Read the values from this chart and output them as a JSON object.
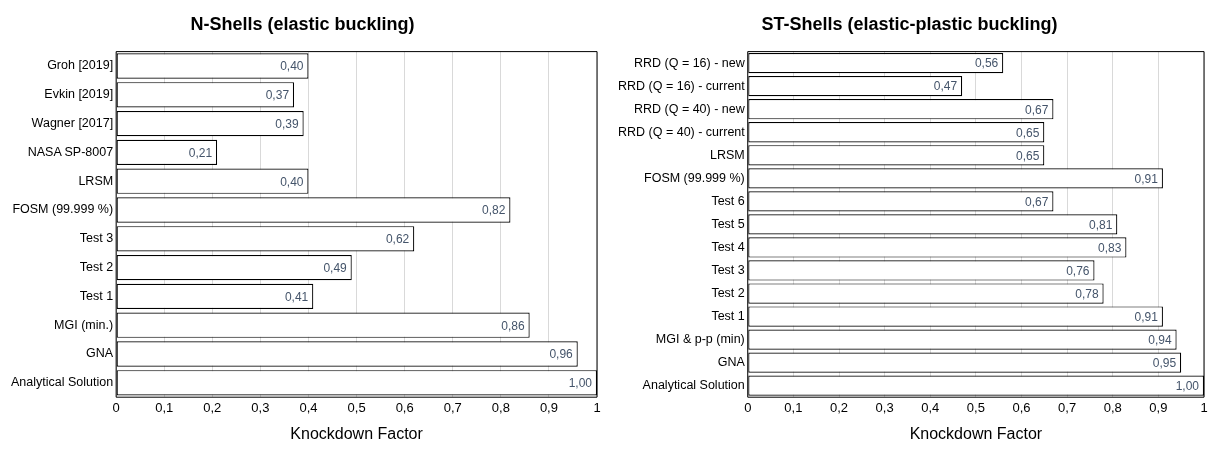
{
  "chart_data": [
    {
      "type": "bar",
      "orientation": "horizontal",
      "title": "N-Shells (elastic buckling)",
      "xlabel": "Knockdown Factor",
      "categories": [
        "Groh [2019]",
        "Evkin [2019]",
        "Wagner [2017]",
        "NASA SP-8007",
        "LRSM",
        "FOSM (99.999 %)",
        "Test 3",
        "Test 2",
        "Test 1",
        "MGI (min.)",
        "GNA",
        "Analytical Solution"
      ],
      "values": [
        0.4,
        0.37,
        0.39,
        0.21,
        0.4,
        0.82,
        0.62,
        0.49,
        0.41,
        0.86,
        0.96,
        1.0
      ],
      "value_labels": [
        "0,40",
        "0,37",
        "0,39",
        "0,21",
        "0,40",
        "0,82",
        "0,62",
        "0,49",
        "0,41",
        "0,86",
        "0,96",
        "1,00"
      ],
      "color": "#ffffff",
      "xlim": [
        0,
        1
      ],
      "xticks": [
        {
          "value": 0,
          "label": "0"
        },
        {
          "value": 0.1,
          "label": "0,1"
        },
        {
          "value": 0.2,
          "label": "0,2"
        },
        {
          "value": 0.3,
          "label": "0,3"
        },
        {
          "value": 0.4,
          "label": "0,4"
        },
        {
          "value": 0.5,
          "label": "0,5"
        },
        {
          "value": 0.6,
          "label": "0,6"
        },
        {
          "value": 0.7,
          "label": "0,7"
        },
        {
          "value": 0.8,
          "label": "0,8"
        },
        {
          "value": 0.9,
          "label": "0,9"
        },
        {
          "value": 1,
          "label": "1"
        }
      ],
      "grid": "x",
      "legend": false
    },
    {
      "type": "bar",
      "orientation": "horizontal",
      "title": "ST-Shells (elastic-plastic buckling)",
      "xlabel": "Knockdown Factor",
      "categories": [
        "RRD (Q = 16) - new",
        "RRD (Q = 16) - current",
        "RRD (Q = 40) - new",
        "RRD (Q = 40) - current",
        "LRSM",
        "FOSM (99.999 %)",
        "Test 6",
        "Test 5",
        "Test 4",
        "Test 3",
        "Test 2",
        "Test 1",
        "MGI & p-p (min)",
        "GNA",
        "Analytical Solution"
      ],
      "values": [
        0.56,
        0.47,
        0.67,
        0.65,
        0.65,
        0.91,
        0.67,
        0.81,
        0.83,
        0.76,
        0.78,
        0.91,
        0.94,
        0.95,
        1.0
      ],
      "value_labels": [
        "0,56",
        "0,47",
        "0,67",
        "0,65",
        "0,65",
        "0,91",
        "0,67",
        "0,81",
        "0,83",
        "0,76",
        "0,78",
        "0,91",
        "0,94",
        "0,95",
        "1,00"
      ],
      "color": "#ffffff",
      "xlim": [
        0,
        1
      ],
      "xticks": [
        {
          "value": 0,
          "label": "0"
        },
        {
          "value": 0.1,
          "label": "0,1"
        },
        {
          "value": 0.2,
          "label": "0,2"
        },
        {
          "value": 0.3,
          "label": "0,3"
        },
        {
          "value": 0.4,
          "label": "0,4"
        },
        {
          "value": 0.5,
          "label": "0,5"
        },
        {
          "value": 0.6,
          "label": "0,6"
        },
        {
          "value": 0.7,
          "label": "0,7"
        },
        {
          "value": 0.8,
          "label": "0,8"
        },
        {
          "value": 0.9,
          "label": "0,9"
        },
        {
          "value": 1,
          "label": "1"
        }
      ],
      "grid": "x",
      "legend": false
    }
  ]
}
